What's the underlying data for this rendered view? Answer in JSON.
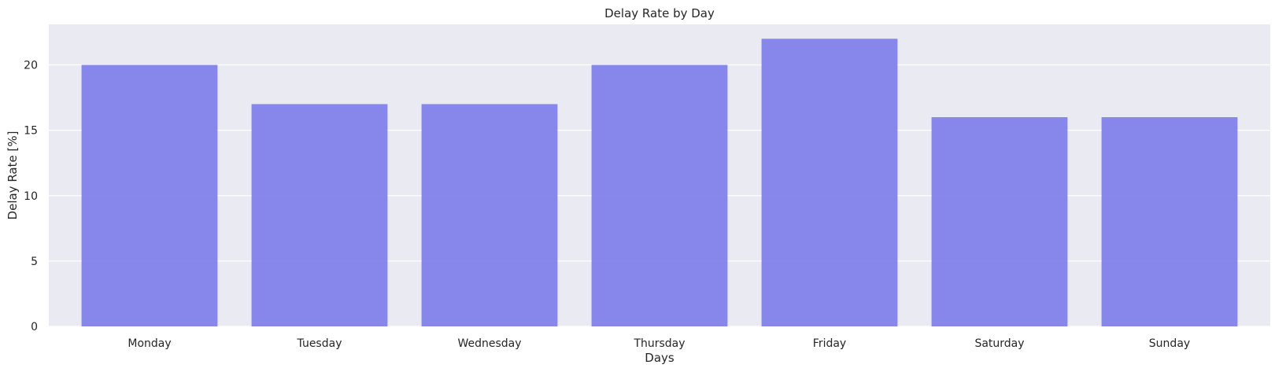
{
  "chart_data": {
    "type": "bar",
    "title": "Delay Rate by Day",
    "xlabel": "Days",
    "ylabel": "Delay Rate [%]",
    "categories": [
      "Monday",
      "Tuesday",
      "Wednesday",
      "Thursday",
      "Friday",
      "Saturday",
      "Sunday"
    ],
    "values": [
      20,
      17,
      17,
      20,
      22,
      16,
      16
    ],
    "ylim": [
      0,
      23.1
    ],
    "yticks": [
      0,
      5,
      10,
      15,
      20
    ],
    "grid": true,
    "colors": {
      "bar": "#7b7bea",
      "plot_background": "#eaeaf2",
      "grid": "#ffffff"
    }
  }
}
